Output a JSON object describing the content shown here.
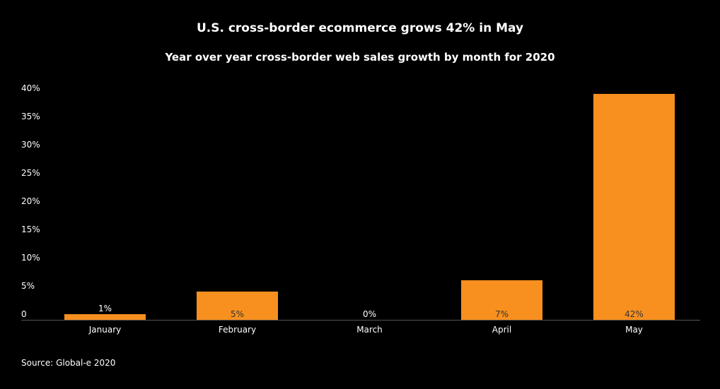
{
  "chart_data": {
    "type": "bar",
    "title": "U.S. cross-border ecommerce grows 42% in May",
    "subtitle": "Year over year cross-border web sales growth by month for 2020",
    "categories": [
      "January",
      "February",
      "March",
      "April",
      "May"
    ],
    "values": [
      1,
      5,
      0,
      7,
      42
    ],
    "data_labels": [
      "1%",
      "5%",
      "0%",
      "7%",
      "42%"
    ],
    "yticks": [
      0,
      5,
      10,
      15,
      20,
      25,
      30,
      35,
      40
    ],
    "ytick_labels": [
      "0",
      "5%",
      "10%",
      "15%",
      "20%",
      "25%",
      "30%",
      "35%",
      "40%"
    ],
    "ylim": [
      0,
      40
    ],
    "xlabel": "",
    "ylabel": "",
    "grid": false,
    "bar_color": "#F7901E",
    "source": "Source: Global-e 2020"
  }
}
